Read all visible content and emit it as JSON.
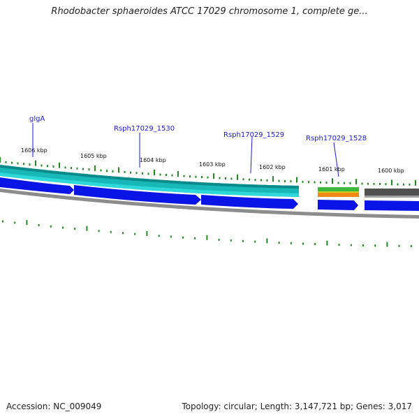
{
  "title": "Rhodobacter sphaeroides ATCC 17029 chromosome 1, complete ge...",
  "footer": {
    "accession": "Accession: NC_009049",
    "summary": "Topology: circular; Length: 3,147,721 bp; Genes: 3,017"
  },
  "ruler": {
    "labels": [
      "1606 kbp",
      "1605 kbp",
      "1604 kbp",
      "1603 kbp",
      "1602 kbp",
      "1601 kbp",
      "1600 kbp"
    ]
  },
  "genes": [
    {
      "name": "glgA"
    },
    {
      "name": "Rsph17029_1530"
    },
    {
      "name": "Rsph17029_1529"
    },
    {
      "name": "Rsph17029_1528"
    }
  ],
  "colors": {
    "ruler_tick": "#1f8a1f",
    "teal_band": "#18b8b8",
    "teal_dark": "#0a8a8a",
    "gene_forward": "#0a14e6",
    "gray_band": "#8c8c8c",
    "dark_gray_block": "#505050",
    "green_block": "#3cb83c",
    "orange_block": "#f08a14",
    "label_blue": "#1a1adc"
  }
}
